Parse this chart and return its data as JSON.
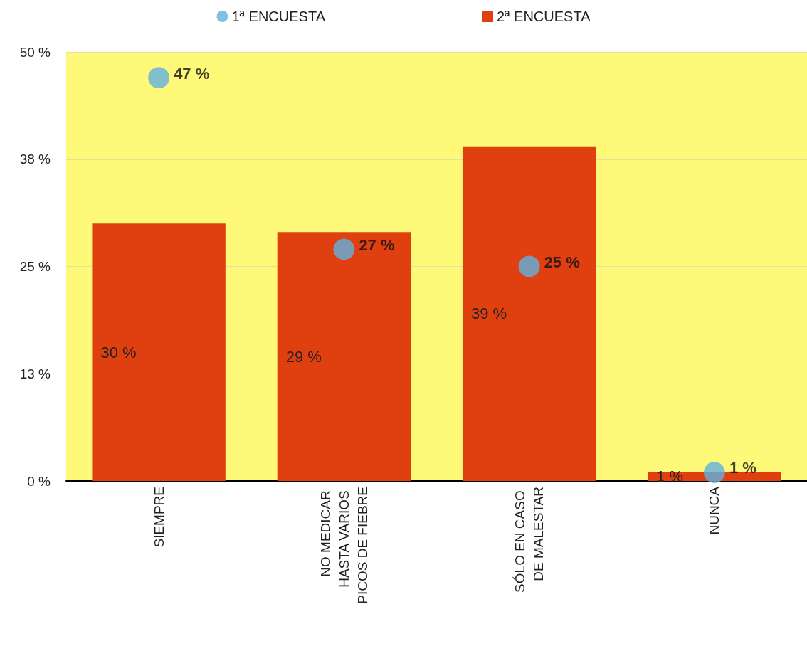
{
  "chart_data": {
    "type": "bar",
    "categories": [
      "SIEMPRE",
      "NO MEDICAR HASTA VARIOS PICOS DE FIEBRE",
      "SÓLO EN CASO DE MALESTAR",
      "NUNCA"
    ],
    "series": [
      {
        "name": "2ª ENCUESTA",
        "color": "#e0400f",
        "values": [
          30,
          29,
          39,
          1
        ],
        "value_labels": [
          "30 %",
          "29 %",
          "39 %",
          "1 %"
        ]
      },
      {
        "name": "1ª ENCUESTA",
        "type": "scatter",
        "color": "#62b0e0",
        "x": [
          "SIEMPRE",
          "NO MEDICAR HASTA VARIOS PICOS DE FIEBRE",
          "SÓLO EN CASO DE MALESTAR",
          "NUNCA"
        ],
        "values": [
          47,
          27,
          25,
          1
        ],
        "value_labels": [
          "47 %",
          "27 %",
          "25 %",
          "1 %"
        ]
      }
    ],
    "ylim": [
      0,
      50
    ],
    "yticks": [
      {
        "value": 0,
        "label": "0 %"
      },
      {
        "value": 12.5,
        "label": "13 %"
      },
      {
        "value": 25,
        "label": "25 %"
      },
      {
        "value": 37.5,
        "label": "38 %"
      },
      {
        "value": 50,
        "label": "50 %"
      }
    ],
    "grid": "y",
    "legend": "top",
    "marker": "circle"
  }
}
